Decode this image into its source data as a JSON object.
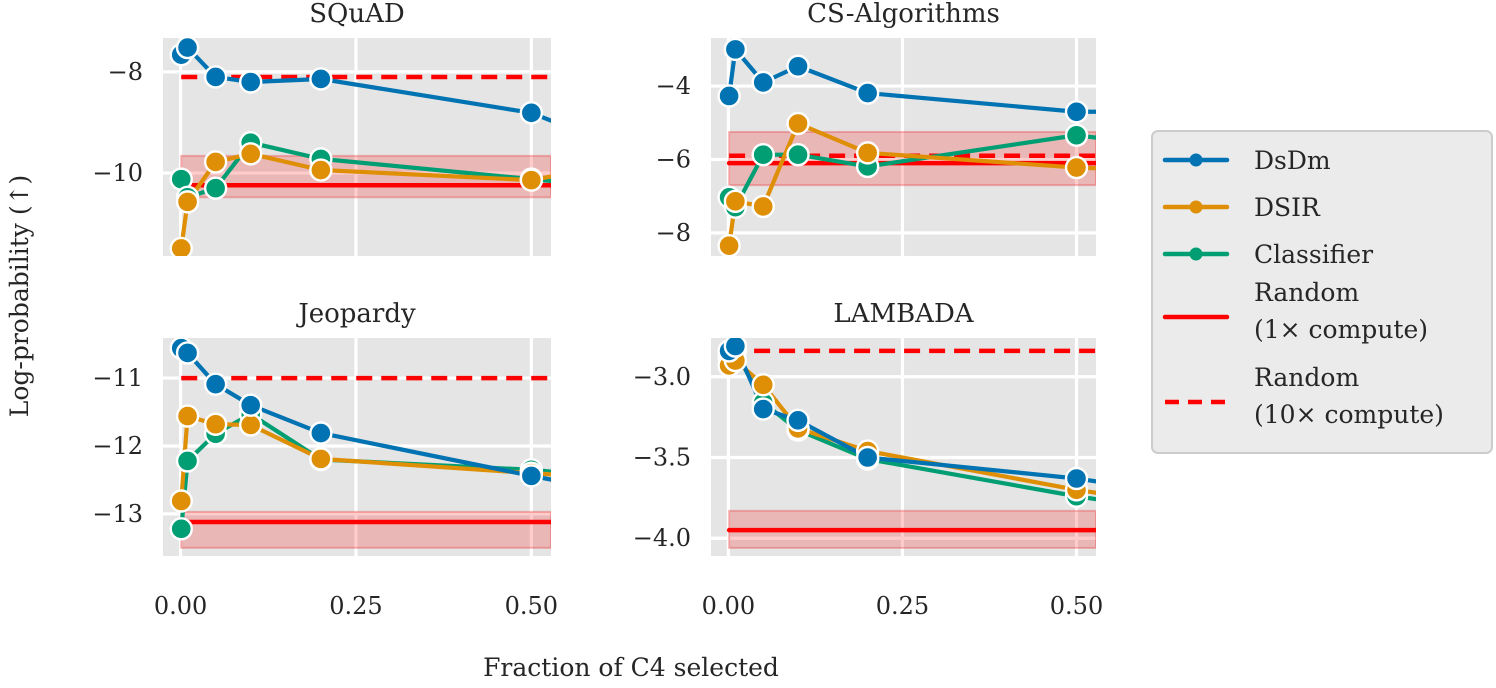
{
  "chart_data": {
    "type": "line",
    "xlabel": "Fraction of C4 selected",
    "ylabel": "Log-probability (↑)",
    "xlim": [
      -0.025,
      0.528
    ],
    "xticks": [
      0.0,
      0.25,
      0.5
    ],
    "xtick_labels": [
      "0.00",
      "0.25",
      "0.50"
    ],
    "grid": true,
    "legend_placement": "right",
    "legend": [
      {
        "name": "DsDm",
        "color": "#0173b2",
        "style": "line-marker"
      },
      {
        "name": "DSIR",
        "color": "#de8f05",
        "style": "line-marker"
      },
      {
        "name": "Classifier",
        "color": "#029e73",
        "style": "line-marker"
      },
      {
        "name": "Random\n(1× compute)",
        "lines": [
          "Random",
          "(1× compute)"
        ],
        "color": "#ff0000",
        "style": "solid"
      },
      {
        "name": "Random\n(10× compute)",
        "lines": [
          "Random",
          "(10× compute)"
        ],
        "color": "#ff0000",
        "style": "dashed"
      }
    ],
    "panels": [
      {
        "title": "SQuAD",
        "ylim": [
          -11.64,
          -7.33
        ],
        "yticks": [
          -8,
          -10
        ],
        "ytick_labels": [
          "−8",
          "−10"
        ],
        "x": [
          0.001,
          0.01,
          0.05,
          0.1,
          0.2,
          0.5
        ],
        "series": [
          {
            "name": "DsDm",
            "values": [
              -7.66,
              -7.52,
              -8.1,
              -8.2,
              -8.14,
              -8.81
            ],
            "edge_value": -8.98
          },
          {
            "name": "DSIR",
            "values": [
              -11.49,
              -10.57,
              -9.78,
              -9.62,
              -9.94,
              -10.14
            ],
            "edge_value": -10.06
          },
          {
            "name": "Classifier",
            "values": [
              -10.12,
              -10.48,
              -10.3,
              -9.4,
              -9.72,
              -10.12
            ],
            "edge_value": -10.16
          }
        ],
        "random_1x": -10.24,
        "random_1x_band": [
          -10.48,
          -9.66
        ],
        "random_10x": -8.1
      },
      {
        "title": "CS-Algorithms",
        "ylim": [
          -8.63,
          -2.69
        ],
        "yticks": [
          -4,
          -6,
          -8
        ],
        "ytick_labels": [
          "−4",
          "−6",
          "−8"
        ],
        "x": [
          0.001,
          0.01,
          0.05,
          0.1,
          0.2,
          0.5
        ],
        "series": [
          {
            "name": "DsDm",
            "values": [
              -4.27,
              -3.0,
              -3.9,
              -3.46,
              -4.19,
              -4.7
            ],
            "edge_value": -4.7
          },
          {
            "name": "DSIR",
            "values": [
              -8.35,
              -7.14,
              -7.28,
              -5.02,
              -5.82,
              -6.22
            ],
            "edge_value": -6.24
          },
          {
            "name": "Classifier",
            "values": [
              -7.03,
              -7.3,
              -5.87,
              -5.87,
              -6.19,
              -5.34
            ],
            "edge_value": -5.41
          }
        ],
        "random_1x": -6.1,
        "random_1x_band": [
          -6.7,
          -5.25
        ],
        "random_10x": -5.9
      },
      {
        "title": "Jeopardy",
        "ylim": [
          -13.62,
          -10.41
        ],
        "yticks": [
          -11,
          -12,
          -13
        ],
        "ytick_labels": [
          "−11",
          "−12",
          "−13"
        ],
        "x": [
          0.001,
          0.01,
          0.05,
          0.1,
          0.2,
          0.5
        ],
        "series": [
          {
            "name": "DsDm",
            "values": [
              -10.56,
              -10.63,
              -11.09,
              -11.4,
              -11.81,
              -12.44
            ],
            "edge_value": -12.5
          },
          {
            "name": "DSIR",
            "values": [
              -12.81,
              -11.56,
              -11.68,
              -11.69,
              -12.19,
              -12.4
            ],
            "edge_value": -12.42
          },
          {
            "name": "Classifier",
            "values": [
              -13.22,
              -12.22,
              -11.82,
              -11.53,
              -12.2,
              -12.35
            ],
            "edge_value": -12.38
          }
        ],
        "random_1x": -13.12,
        "random_1x_band": [
          -13.5,
          -12.97
        ],
        "random_10x": -11.0
      },
      {
        "title": "LAMBADA",
        "ylim": [
          -4.11,
          -2.76
        ],
        "yticks": [
          -3.0,
          -3.5,
          -4.0
        ],
        "ytick_labels": [
          "−3.0",
          "−3.5",
          "−4.0"
        ],
        "x": [
          0.001,
          0.01,
          0.05,
          0.1,
          0.2,
          0.5
        ],
        "series": [
          {
            "name": "DsDm",
            "values": [
              -2.84,
              -2.81,
              -3.2,
              -3.27,
              -3.5,
              -3.63
            ],
            "edge_value": -3.65
          },
          {
            "name": "DSIR",
            "values": [
              -2.93,
              -2.9,
              -3.05,
              -3.32,
              -3.46,
              -3.7
            ],
            "edge_value": -3.72
          },
          {
            "name": "Classifier",
            "values": [
              -2.88,
              -2.84,
              -3.16,
              -3.33,
              -3.51,
              -3.74
            ],
            "edge_value": -3.76
          }
        ],
        "random_1x": -3.95,
        "random_1x_band": [
          -4.06,
          -3.83
        ],
        "random_10x": -2.84
      }
    ]
  }
}
